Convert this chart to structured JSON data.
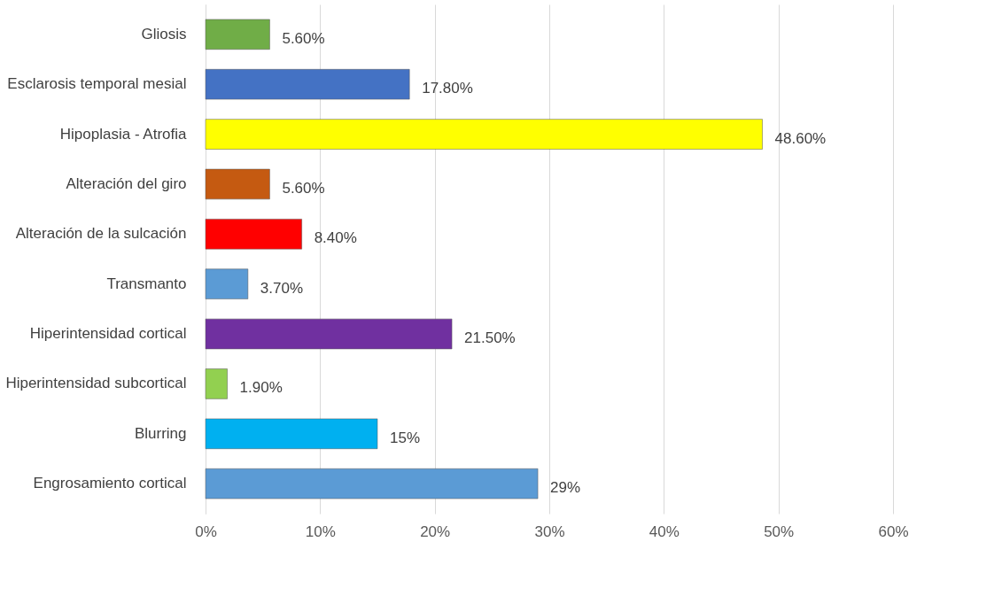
{
  "chart_data": {
    "type": "bar",
    "orientation": "horizontal",
    "categories": [
      "Gliosis",
      "Esclarosis temporal mesial",
      "Hipoplasia - Atrofia",
      "Alteración del giro",
      "Alteración de la sulcación",
      "Transmanto",
      "Hiperintensidad cortical",
      "Hiperintensidad subcortical",
      "Blurring",
      "Engrosamiento cortical"
    ],
    "values": [
      5.6,
      17.8,
      48.6,
      5.6,
      8.4,
      3.7,
      21.5,
      1.9,
      15,
      29
    ],
    "colors": [
      "#70ad47",
      "#4472c4",
      "#ffff00",
      "#c55a11",
      "#ff0000",
      "#5b9bd5",
      "#7030a0",
      "#92d050",
      "#00b0f0",
      "#5b9bd5"
    ],
    "value_labels": [
      "5.60%",
      "17.80%",
      "48.60%",
      "5.60%",
      "8.40%",
      "3.70%",
      "21.50%",
      "1.90%",
      "15%",
      "29%"
    ],
    "xlim": [
      0,
      60
    ],
    "xticks": [
      {
        "value": 0,
        "label": "0%"
      },
      {
        "value": 10,
        "label": "10%"
      },
      {
        "value": 20,
        "label": "20%"
      },
      {
        "value": 30,
        "label": "30%"
      },
      {
        "value": 40,
        "label": "40%"
      },
      {
        "value": 50,
        "label": "50%"
      },
      {
        "value": 60,
        "label": "60%"
      }
    ],
    "grid": "x"
  }
}
